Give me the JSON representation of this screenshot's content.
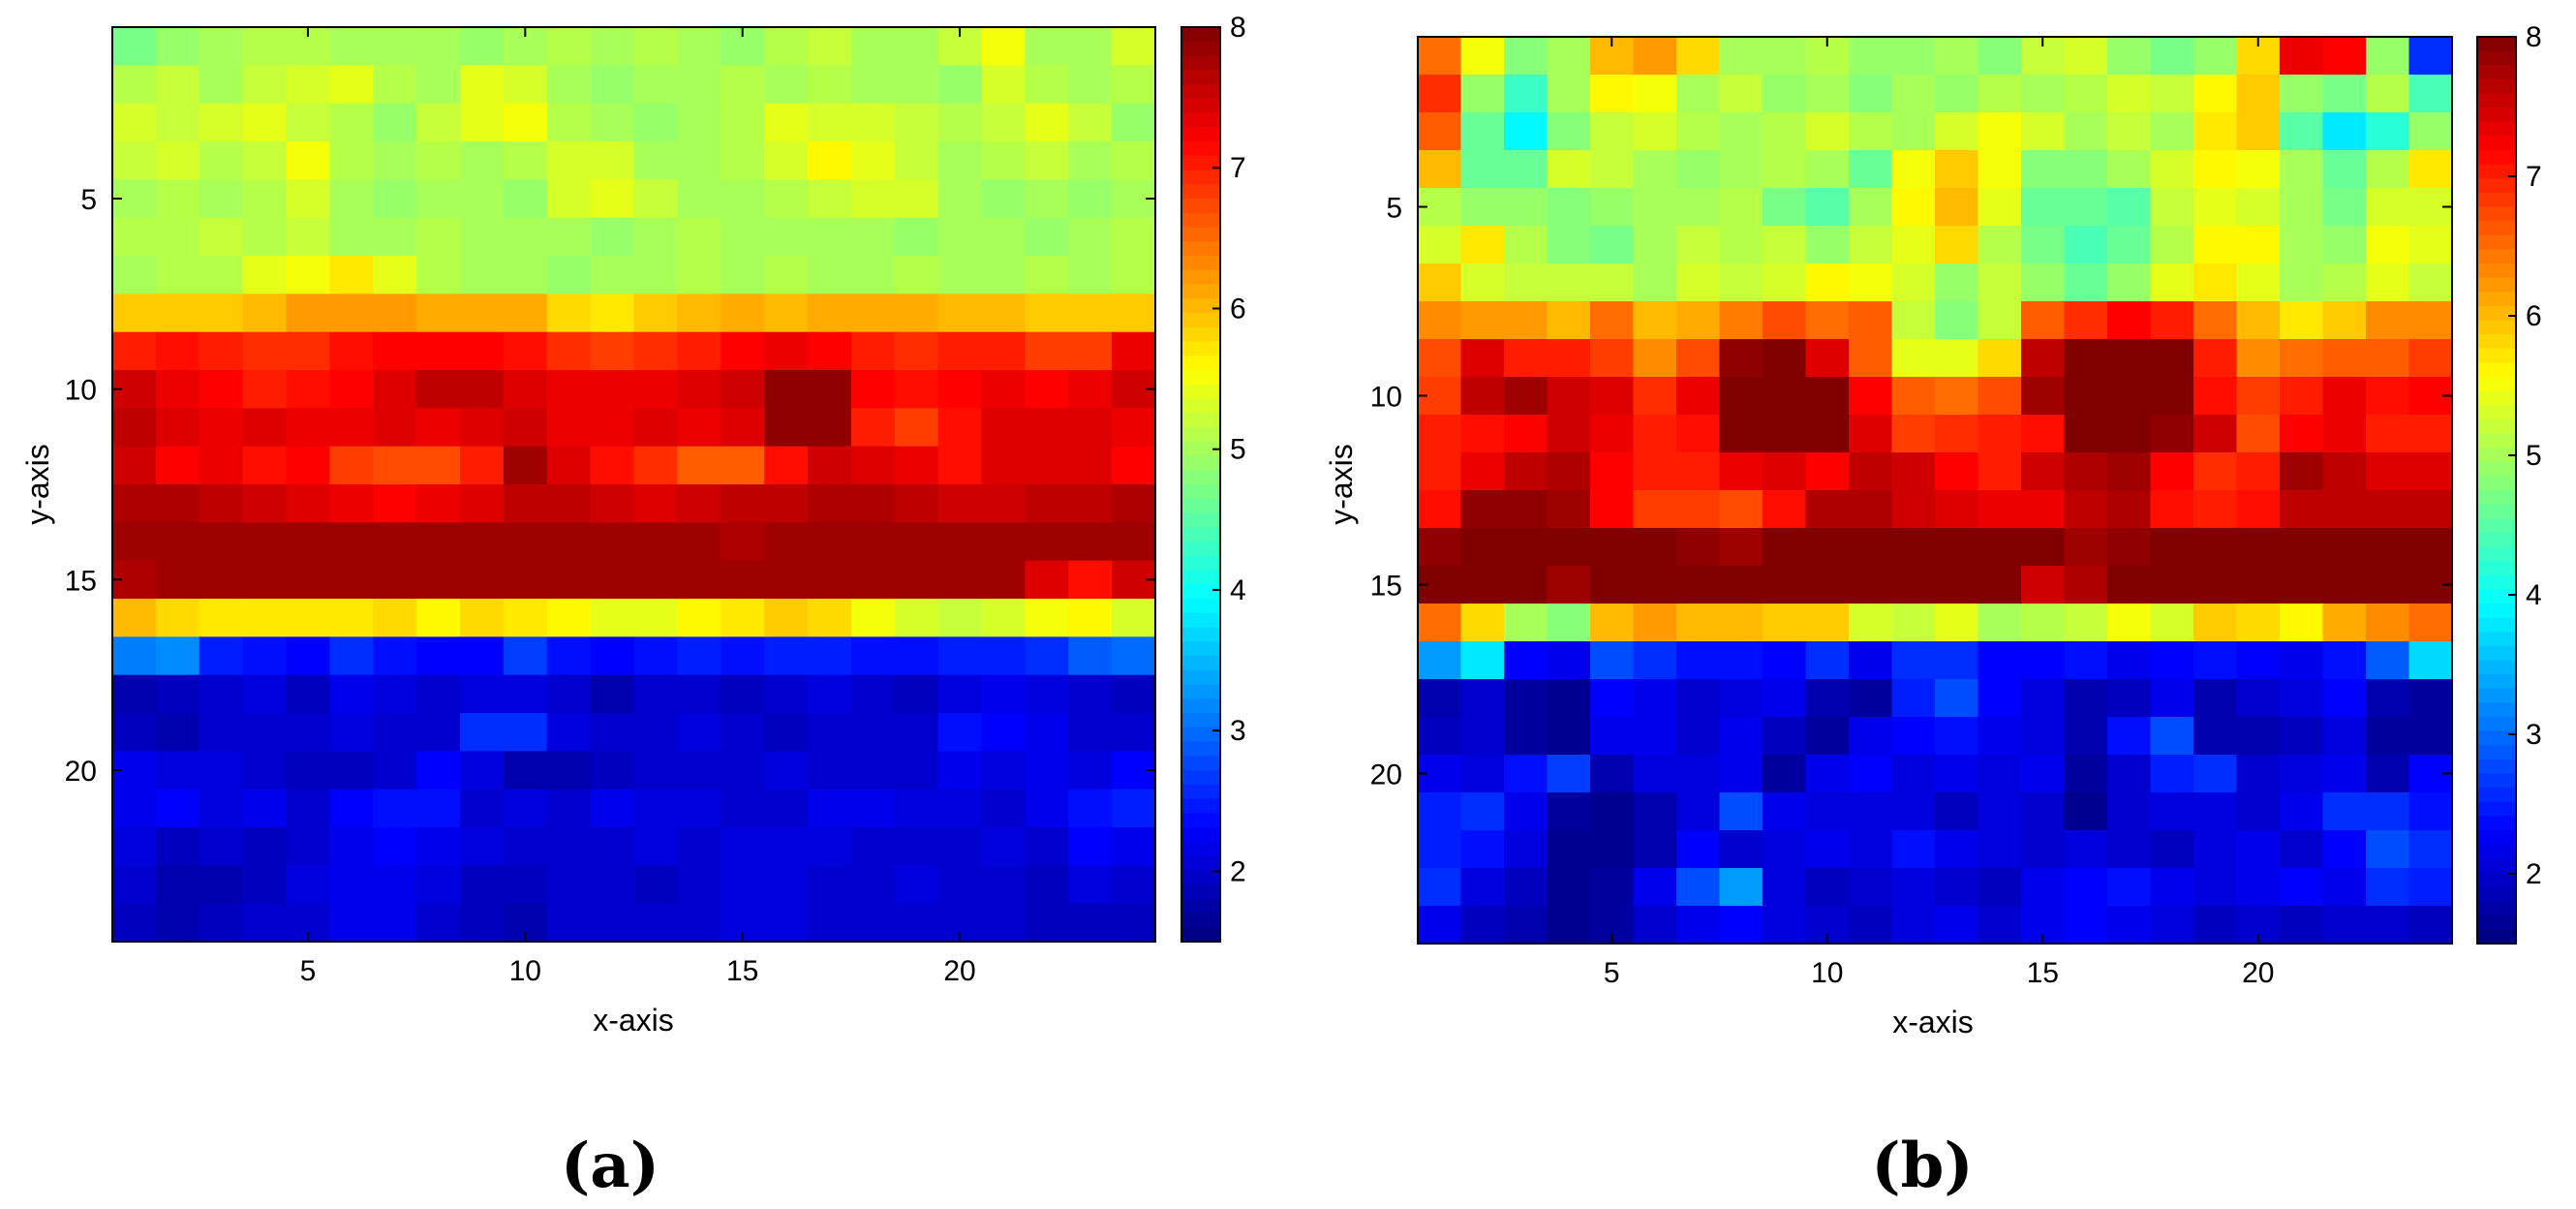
{
  "chart_data": [
    {
      "type": "heatmap",
      "panel_label": "(a)",
      "xlabel": "x-axis",
      "ylabel": "y-axis",
      "x_ticks": [
        5,
        10,
        15,
        20
      ],
      "y_ticks": [
        5,
        10,
        15,
        20
      ],
      "xlim": [
        0.5,
        24.5
      ],
      "ylim": [
        0.5,
        24.5
      ],
      "y_direction": "top-down",
      "colorbar": {
        "min": 1.5,
        "max": 8,
        "ticks": [
          2,
          3,
          4,
          5,
          6,
          7,
          8
        ],
        "colormap": "jet"
      },
      "values": [
        [
          4.7,
          4.9,
          5.0,
          5.1,
          5.1,
          5.0,
          5.0,
          5.0,
          4.9,
          5.0,
          5.1,
          5.0,
          5.1,
          5.0,
          4.9,
          5.1,
          5.2,
          5.0,
          5.0,
          5.2,
          5.5,
          5.0,
          5.0,
          5.3
        ],
        [
          5.1,
          5.2,
          5.0,
          5.2,
          5.3,
          5.4,
          5.1,
          5.0,
          5.4,
          5.3,
          5.0,
          4.9,
          5.0,
          5.0,
          5.1,
          5.0,
          5.1,
          5.0,
          5.0,
          4.9,
          5.3,
          5.1,
          5.0,
          5.1
        ],
        [
          5.3,
          5.2,
          5.3,
          5.4,
          5.2,
          5.1,
          4.9,
          5.2,
          5.4,
          5.5,
          5.1,
          5.0,
          4.9,
          5.0,
          5.1,
          5.4,
          5.3,
          5.3,
          5.2,
          5.1,
          5.2,
          5.4,
          5.2,
          4.9
        ],
        [
          5.2,
          5.3,
          5.1,
          5.2,
          5.5,
          5.1,
          5.0,
          5.1,
          5.0,
          5.1,
          5.3,
          5.3,
          5.0,
          5.0,
          5.1,
          5.3,
          5.6,
          5.4,
          5.2,
          5.0,
          5.1,
          5.2,
          5.0,
          5.1
        ],
        [
          5.0,
          5.1,
          5.0,
          5.1,
          5.3,
          5.0,
          4.9,
          5.0,
          5.0,
          4.9,
          5.3,
          5.4,
          5.2,
          5.0,
          5.0,
          5.1,
          5.2,
          5.3,
          5.3,
          5.0,
          4.9,
          5.0,
          4.9,
          5.0
        ],
        [
          5.1,
          5.1,
          5.2,
          5.1,
          5.2,
          5.0,
          5.0,
          5.1,
          5.0,
          5.0,
          5.0,
          4.9,
          5.0,
          5.1,
          5.0,
          5.0,
          5.0,
          5.0,
          4.9,
          5.0,
          5.0,
          4.9,
          5.0,
          5.1
        ],
        [
          5.0,
          5.1,
          5.1,
          5.4,
          5.5,
          5.7,
          5.4,
          5.1,
          5.0,
          5.0,
          4.9,
          5.0,
          5.0,
          5.1,
          5.0,
          5.1,
          5.0,
          5.0,
          5.1,
          5.0,
          5.0,
          5.1,
          5.0,
          5.1
        ],
        [
          5.9,
          5.9,
          5.9,
          6.0,
          6.2,
          6.2,
          6.2,
          6.1,
          6.1,
          6.1,
          5.8,
          5.7,
          5.9,
          6.0,
          6.1,
          6.0,
          6.1,
          6.1,
          6.1,
          6.0,
          6.0,
          5.9,
          5.9,
          5.9
        ],
        [
          7.0,
          7.1,
          7.0,
          6.9,
          6.9,
          7.1,
          7.2,
          7.2,
          7.2,
          7.1,
          6.9,
          6.8,
          6.9,
          7.0,
          7.2,
          7.3,
          7.2,
          7.0,
          6.9,
          7.0,
          7.0,
          6.8,
          6.8,
          7.3
        ],
        [
          7.5,
          7.3,
          7.2,
          7.0,
          7.1,
          7.2,
          7.4,
          7.6,
          7.6,
          7.4,
          7.3,
          7.3,
          7.3,
          7.4,
          7.5,
          7.9,
          7.9,
          7.2,
          7.1,
          7.2,
          7.3,
          7.2,
          7.3,
          7.5
        ],
        [
          7.6,
          7.4,
          7.3,
          7.4,
          7.3,
          7.3,
          7.4,
          7.3,
          7.4,
          7.5,
          7.3,
          7.3,
          7.4,
          7.3,
          7.4,
          7.9,
          7.9,
          7.0,
          6.8,
          7.1,
          7.4,
          7.4,
          7.4,
          7.3
        ],
        [
          7.5,
          7.2,
          7.3,
          7.1,
          7.2,
          6.8,
          6.7,
          6.7,
          7.0,
          7.8,
          7.4,
          7.1,
          6.9,
          6.6,
          6.6,
          7.1,
          7.5,
          7.4,
          7.3,
          7.1,
          7.4,
          7.4,
          7.4,
          7.2
        ],
        [
          7.7,
          7.7,
          7.6,
          7.5,
          7.4,
          7.3,
          7.2,
          7.3,
          7.4,
          7.6,
          7.6,
          7.5,
          7.4,
          7.5,
          7.6,
          7.6,
          7.7,
          7.7,
          7.6,
          7.5,
          7.5,
          7.6,
          7.6,
          7.7
        ],
        [
          7.8,
          7.8,
          7.8,
          7.8,
          7.8,
          7.8,
          7.8,
          7.8,
          7.8,
          7.8,
          7.8,
          7.8,
          7.8,
          7.8,
          7.7,
          7.8,
          7.8,
          7.8,
          7.8,
          7.8,
          7.8,
          7.8,
          7.8,
          7.8
        ],
        [
          7.7,
          7.8,
          7.8,
          7.8,
          7.8,
          7.8,
          7.8,
          7.8,
          7.8,
          7.8,
          7.8,
          7.8,
          7.8,
          7.8,
          7.8,
          7.8,
          7.8,
          7.8,
          7.8,
          7.8,
          7.8,
          7.4,
          7.1,
          7.5
        ],
        [
          6.0,
          5.8,
          5.7,
          5.7,
          5.7,
          5.7,
          5.8,
          5.6,
          5.8,
          5.7,
          5.6,
          5.4,
          5.4,
          5.6,
          5.7,
          5.9,
          5.8,
          5.5,
          5.3,
          5.2,
          5.3,
          5.5,
          5.6,
          5.3
        ],
        [
          3.1,
          3.2,
          2.5,
          2.4,
          2.3,
          2.6,
          2.4,
          2.3,
          2.3,
          2.7,
          2.4,
          2.3,
          2.4,
          2.5,
          2.4,
          2.5,
          2.5,
          2.4,
          2.4,
          2.5,
          2.5,
          2.6,
          2.9,
          3.0
        ],
        [
          1.8,
          1.9,
          2.0,
          2.1,
          1.9,
          2.2,
          2.1,
          2.0,
          2.1,
          2.1,
          2.0,
          1.8,
          2.0,
          2.0,
          1.9,
          2.0,
          2.1,
          2.0,
          1.9,
          2.1,
          2.2,
          2.1,
          2.0,
          1.9
        ],
        [
          1.9,
          1.8,
          2.0,
          2.0,
          2.0,
          2.1,
          2.0,
          2.0,
          2.6,
          2.6,
          2.1,
          2.0,
          2.0,
          2.1,
          2.0,
          1.9,
          2.0,
          2.0,
          2.0,
          2.4,
          2.3,
          2.2,
          2.0,
          2.0
        ],
        [
          2.2,
          2.1,
          2.1,
          2.0,
          1.9,
          1.9,
          2.0,
          2.3,
          2.1,
          1.8,
          1.8,
          1.9,
          2.0,
          2.0,
          2.0,
          2.1,
          2.0,
          2.0,
          2.0,
          2.2,
          2.1,
          2.2,
          2.1,
          2.3
        ],
        [
          2.2,
          2.3,
          2.1,
          2.2,
          2.0,
          2.3,
          2.4,
          2.4,
          2.0,
          2.1,
          2.0,
          2.2,
          2.1,
          2.1,
          2.0,
          2.0,
          2.2,
          2.2,
          2.1,
          2.1,
          2.0,
          2.2,
          2.4,
          2.5
        ],
        [
          2.1,
          1.9,
          2.0,
          1.9,
          2.0,
          2.2,
          2.3,
          2.2,
          2.1,
          2.0,
          2.0,
          2.0,
          2.1,
          2.0,
          2.1,
          2.1,
          2.1,
          2.0,
          2.0,
          2.0,
          2.1,
          2.0,
          2.3,
          2.2
        ],
        [
          2.0,
          1.8,
          1.8,
          1.9,
          2.1,
          2.2,
          2.2,
          2.1,
          1.9,
          1.9,
          2.0,
          2.0,
          1.9,
          2.0,
          2.1,
          2.1,
          2.0,
          2.0,
          2.1,
          2.0,
          2.0,
          1.9,
          2.1,
          2.0
        ],
        [
          1.9,
          1.8,
          1.9,
          2.0,
          2.0,
          2.2,
          2.2,
          2.0,
          1.9,
          1.8,
          2.0,
          2.0,
          2.0,
          2.0,
          2.1,
          2.1,
          2.0,
          2.0,
          2.0,
          2.0,
          2.0,
          1.9,
          1.9,
          1.9
        ]
      ]
    },
    {
      "type": "heatmap",
      "panel_label": "(b)",
      "xlabel": "x-axis",
      "ylabel": "y-axis",
      "x_ticks": [
        5,
        10,
        15,
        20
      ],
      "y_ticks": [
        5,
        10,
        15,
        20
      ],
      "xlim": [
        0.5,
        24.5
      ],
      "ylim": [
        0.5,
        24.5
      ],
      "y_direction": "top-down",
      "colorbar": {
        "min": 1.5,
        "max": 8,
        "ticks": [
          2,
          3,
          4,
          5,
          6,
          7,
          8
        ],
        "colormap": "jet"
      },
      "values": [
        [
          6.5,
          5.5,
          4.8,
          5.0,
          6.0,
          6.2,
          5.8,
          5.0,
          5.0,
          5.1,
          4.9,
          4.9,
          5.0,
          4.8,
          5.2,
          5.3,
          4.9,
          4.7,
          4.9,
          5.8,
          7.3,
          7.2,
          4.9,
          2.6
        ],
        [
          6.9,
          4.9,
          4.3,
          5.0,
          5.6,
          5.5,
          5.0,
          5.2,
          4.9,
          5.0,
          4.8,
          5.0,
          4.9,
          5.1,
          5.0,
          5.1,
          5.3,
          5.2,
          5.6,
          5.9,
          4.9,
          4.7,
          5.1,
          4.4
        ],
        [
          6.6,
          4.6,
          3.9,
          4.8,
          5.2,
          5.3,
          5.1,
          5.0,
          5.1,
          5.3,
          5.1,
          5.0,
          5.3,
          5.5,
          5.3,
          5.0,
          5.2,
          5.0,
          5.7,
          5.9,
          4.5,
          3.8,
          4.2,
          4.9
        ],
        [
          6.0,
          4.6,
          4.6,
          5.3,
          5.2,
          5.0,
          4.9,
          5.0,
          5.1,
          5.0,
          4.6,
          5.5,
          5.9,
          5.5,
          4.8,
          4.8,
          5.0,
          5.3,
          5.6,
          5.5,
          5.0,
          4.6,
          5.1,
          5.7
        ],
        [
          5.1,
          4.9,
          4.9,
          4.8,
          4.9,
          5.0,
          5.0,
          5.1,
          4.7,
          4.5,
          5.0,
          5.6,
          6.0,
          5.4,
          4.6,
          4.6,
          4.5,
          5.2,
          5.4,
          5.3,
          5.0,
          4.7,
          5.3,
          5.3
        ],
        [
          5.3,
          5.7,
          5.1,
          4.8,
          4.7,
          5.0,
          5.2,
          5.1,
          5.2,
          4.9,
          5.2,
          5.4,
          5.8,
          5.1,
          4.7,
          4.4,
          4.6,
          5.1,
          5.6,
          5.6,
          5.0,
          4.9,
          5.5,
          5.4
        ],
        [
          5.9,
          5.3,
          5.2,
          5.2,
          5.2,
          5.0,
          5.3,
          5.2,
          5.3,
          5.6,
          5.5,
          5.3,
          4.9,
          5.2,
          4.9,
          4.6,
          4.9,
          5.4,
          5.7,
          5.4,
          5.0,
          5.1,
          5.4,
          5.2
        ],
        [
          6.3,
          6.2,
          6.2,
          6.0,
          6.5,
          6.0,
          6.1,
          6.4,
          6.7,
          6.5,
          6.6,
          5.2,
          4.8,
          5.2,
          6.6,
          6.9,
          7.2,
          7.0,
          6.5,
          6.0,
          5.7,
          5.9,
          6.3,
          6.3
        ],
        [
          6.7,
          7.4,
          7.0,
          7.0,
          6.8,
          6.3,
          6.7,
          7.9,
          8.0,
          7.4,
          6.6,
          5.4,
          5.4,
          5.8,
          7.6,
          8.0,
          8.0,
          8.0,
          7.0,
          6.3,
          6.5,
          6.6,
          6.6,
          6.8
        ],
        [
          6.8,
          7.6,
          7.8,
          7.5,
          7.4,
          6.9,
          7.3,
          8.0,
          8.0,
          8.0,
          7.2,
          6.6,
          6.5,
          6.7,
          7.8,
          8.0,
          8.0,
          8.0,
          7.1,
          6.8,
          7.0,
          7.3,
          7.1,
          7.2
        ],
        [
          7.0,
          7.1,
          7.2,
          7.5,
          7.3,
          7.0,
          7.1,
          8.0,
          8.0,
          8.0,
          7.4,
          6.8,
          6.9,
          7.0,
          7.1,
          8.0,
          8.0,
          7.9,
          7.5,
          6.7,
          7.2,
          7.3,
          7.0,
          7.0
        ],
        [
          7.0,
          7.3,
          7.6,
          7.7,
          7.2,
          7.0,
          7.0,
          7.3,
          7.4,
          7.2,
          7.6,
          7.5,
          7.2,
          7.0,
          7.5,
          7.7,
          7.8,
          7.2,
          6.9,
          7.0,
          7.8,
          7.6,
          7.4,
          7.4
        ],
        [
          7.1,
          7.9,
          7.9,
          7.8,
          7.2,
          6.8,
          6.8,
          6.7,
          7.1,
          7.7,
          7.7,
          7.5,
          7.4,
          7.3,
          7.3,
          7.6,
          7.7,
          7.1,
          7.0,
          7.1,
          7.6,
          7.6,
          7.6,
          7.6
        ],
        [
          7.9,
          8.0,
          8.0,
          8.0,
          8.0,
          8.0,
          7.9,
          7.8,
          8.0,
          8.0,
          8.0,
          8.0,
          8.0,
          8.0,
          8.0,
          7.8,
          7.9,
          8.0,
          8.0,
          8.0,
          8.0,
          8.0,
          8.0,
          8.0
        ],
        [
          8.0,
          8.0,
          8.0,
          7.8,
          8.0,
          8.0,
          8.0,
          8.0,
          8.0,
          8.0,
          8.0,
          8.0,
          8.0,
          8.0,
          7.5,
          7.7,
          8.0,
          8.0,
          8.0,
          8.0,
          8.0,
          8.0,
          8.0,
          8.0
        ],
        [
          6.5,
          5.8,
          5.0,
          4.8,
          6.0,
          6.2,
          6.0,
          6.0,
          5.9,
          5.9,
          5.3,
          5.2,
          5.4,
          5.0,
          5.1,
          5.2,
          5.5,
          5.3,
          5.9,
          5.8,
          5.6,
          6.1,
          6.3,
          6.5
        ],
        [
          3.3,
          3.8,
          2.3,
          2.2,
          2.8,
          2.6,
          2.4,
          2.4,
          2.3,
          2.6,
          2.2,
          2.6,
          2.6,
          2.3,
          2.3,
          2.4,
          2.2,
          2.3,
          2.4,
          2.3,
          2.2,
          2.4,
          2.9,
          3.7
        ],
        [
          1.8,
          2.0,
          1.7,
          1.6,
          2.3,
          2.2,
          2.0,
          2.1,
          2.2,
          1.8,
          1.7,
          2.5,
          2.8,
          2.3,
          2.1,
          1.8,
          1.9,
          2.2,
          1.8,
          2.0,
          2.1,
          2.3,
          1.8,
          1.7
        ],
        [
          1.9,
          2.0,
          1.7,
          1.6,
          2.2,
          2.2,
          2.0,
          2.2,
          1.9,
          1.7,
          2.2,
          2.3,
          2.4,
          2.2,
          2.1,
          1.8,
          2.4,
          2.8,
          1.8,
          1.8,
          1.9,
          2.1,
          1.7,
          1.7
        ],
        [
          2.2,
          2.1,
          2.4,
          2.7,
          1.8,
          2.1,
          2.1,
          2.2,
          1.7,
          2.2,
          2.3,
          2.1,
          2.2,
          2.1,
          2.2,
          1.7,
          2.0,
          2.5,
          2.6,
          2.0,
          2.1,
          2.2,
          1.8,
          2.3
        ],
        [
          2.5,
          2.6,
          2.2,
          1.7,
          1.6,
          1.8,
          2.1,
          2.8,
          2.2,
          2.1,
          2.1,
          2.1,
          1.9,
          2.1,
          2.0,
          1.6,
          2.0,
          2.1,
          2.1,
          2.0,
          2.2,
          2.6,
          2.6,
          2.4
        ],
        [
          2.5,
          2.4,
          2.1,
          1.6,
          1.6,
          1.8,
          2.3,
          2.0,
          2.1,
          2.2,
          2.1,
          2.4,
          2.2,
          2.1,
          2.0,
          2.1,
          2.0,
          1.9,
          2.1,
          2.2,
          2.0,
          2.3,
          2.8,
          2.6
        ],
        [
          2.6,
          2.1,
          1.9,
          1.6,
          1.7,
          2.2,
          2.8,
          3.3,
          2.1,
          1.9,
          2.0,
          2.1,
          2.0,
          1.9,
          2.2,
          2.3,
          2.4,
          2.2,
          2.1,
          2.2,
          2.3,
          2.2,
          2.6,
          2.5
        ],
        [
          2.2,
          1.9,
          1.8,
          1.6,
          1.7,
          2.0,
          2.2,
          2.3,
          2.1,
          2.0,
          1.9,
          2.1,
          2.2,
          2.0,
          2.2,
          2.3,
          2.2,
          2.1,
          1.9,
          2.0,
          1.9,
          2.0,
          2.0,
          1.9
        ]
      ]
    }
  ]
}
